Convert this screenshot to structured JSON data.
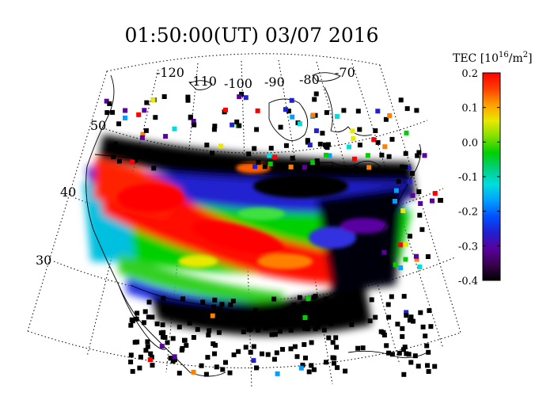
{
  "title": "01:50:00(UT)  03/07 2016",
  "colorbar": {
    "title_main": "TEC [10",
    "title_exp": "16",
    "title_unit": "/m",
    "title_unit_exp": "2",
    "title_close": "]",
    "min": -0.4,
    "max": 0.2,
    "tick_labels": [
      "0.2",
      "0.1",
      "0.0",
      "-0.1",
      "-0.2",
      "-0.3",
      "-0.4"
    ],
    "colors": [
      "#000000",
      "#3a0050",
      "#5a00a0",
      "#2020d0",
      "#0050ff",
      "#00a0ff",
      "#00dddd",
      "#00d080",
      "#00d000",
      "#80e000",
      "#e8e800",
      "#ffa000",
      "#ff4000",
      "#ff0000"
    ]
  },
  "map": {
    "longitude_labels": [
      "-120",
      "-110",
      "-100",
      "-90",
      "-80",
      "-70"
    ],
    "latitude_labels": [
      "50",
      "40",
      "30"
    ]
  }
}
